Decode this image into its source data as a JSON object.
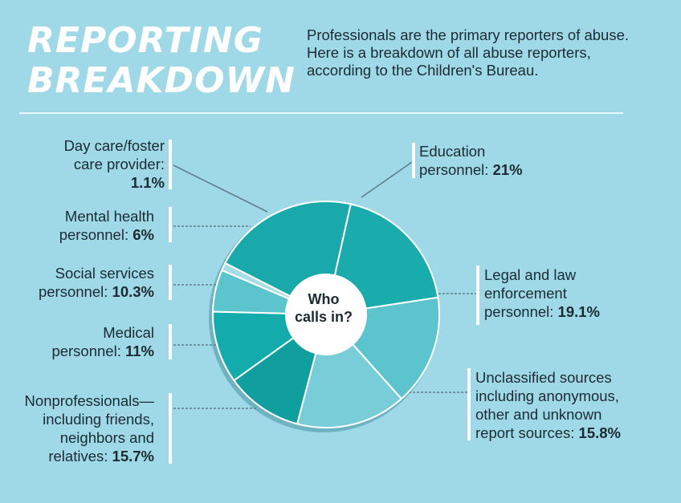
{
  "header": {
    "title_line1": "REPORTING",
    "title_line2": "BREAKDOWN",
    "subtitle": "Professionals are the primary reporters of abuse. Here is a breakdown of all abuse reporters, according to the Children's Bureau."
  },
  "center_label": {
    "line1": "Who",
    "line2": "calls in?"
  },
  "colors": {
    "background": "#9fd8e7",
    "segment_colors": [
      "#1aa9aa",
      "#1aacad",
      "#5cc4cd",
      "#78cdd9",
      "#109e9f",
      "#14abac",
      "#5cc4cd",
      "#a6dde7"
    ]
  },
  "chart_data": {
    "type": "pie",
    "title": "REPORTING BREAKDOWN",
    "center_text": "Who calls in?",
    "slices": [
      {
        "name": "Education personnel",
        "value": 21,
        "label_line1": "Education",
        "label_line2": "personnel: ",
        "pct_text": "21%"
      },
      {
        "name": "Legal and law enforcement personnel",
        "value": 19.1,
        "label_line1": "Legal and law",
        "label_line2": "enforcement",
        "label_line3": "personnel: ",
        "pct_text": "19.1%"
      },
      {
        "name": "Unclassified sources including anonymous, other and unknown report sources",
        "value": 15.8,
        "label_line1": "Unclassified sources",
        "label_line2": "including anonymous,",
        "label_line3": "other and unknown",
        "label_line4": "report sources: ",
        "pct_text": "15.8%"
      },
      {
        "name": "Nonprofessionals—including friends, neighbors and relatives",
        "value": 15.7,
        "label_line1": "Nonprofessionals—",
        "label_line2": "including friends,",
        "label_line3": "neighbors and",
        "label_line4": "relatives: ",
        "pct_text": "15.7%"
      },
      {
        "name": "Medical personnel",
        "value": 11,
        "label_line1": "Medical",
        "label_line2": "personnel: ",
        "pct_text": "11%"
      },
      {
        "name": "Social services personnel",
        "value": 10.3,
        "label_line1": "Social services",
        "label_line2": "personnel: ",
        "pct_text": "10.3%"
      },
      {
        "name": "Mental health personnel",
        "value": 6,
        "label_line1": "Mental health",
        "label_line2": "personnel: ",
        "pct_text": "6%"
      },
      {
        "name": "Day care/foster care provider",
        "value": 1.1,
        "label_line1": "Day care/foster",
        "label_line2": "care provider:",
        "pct_text": "1.1%"
      }
    ]
  }
}
